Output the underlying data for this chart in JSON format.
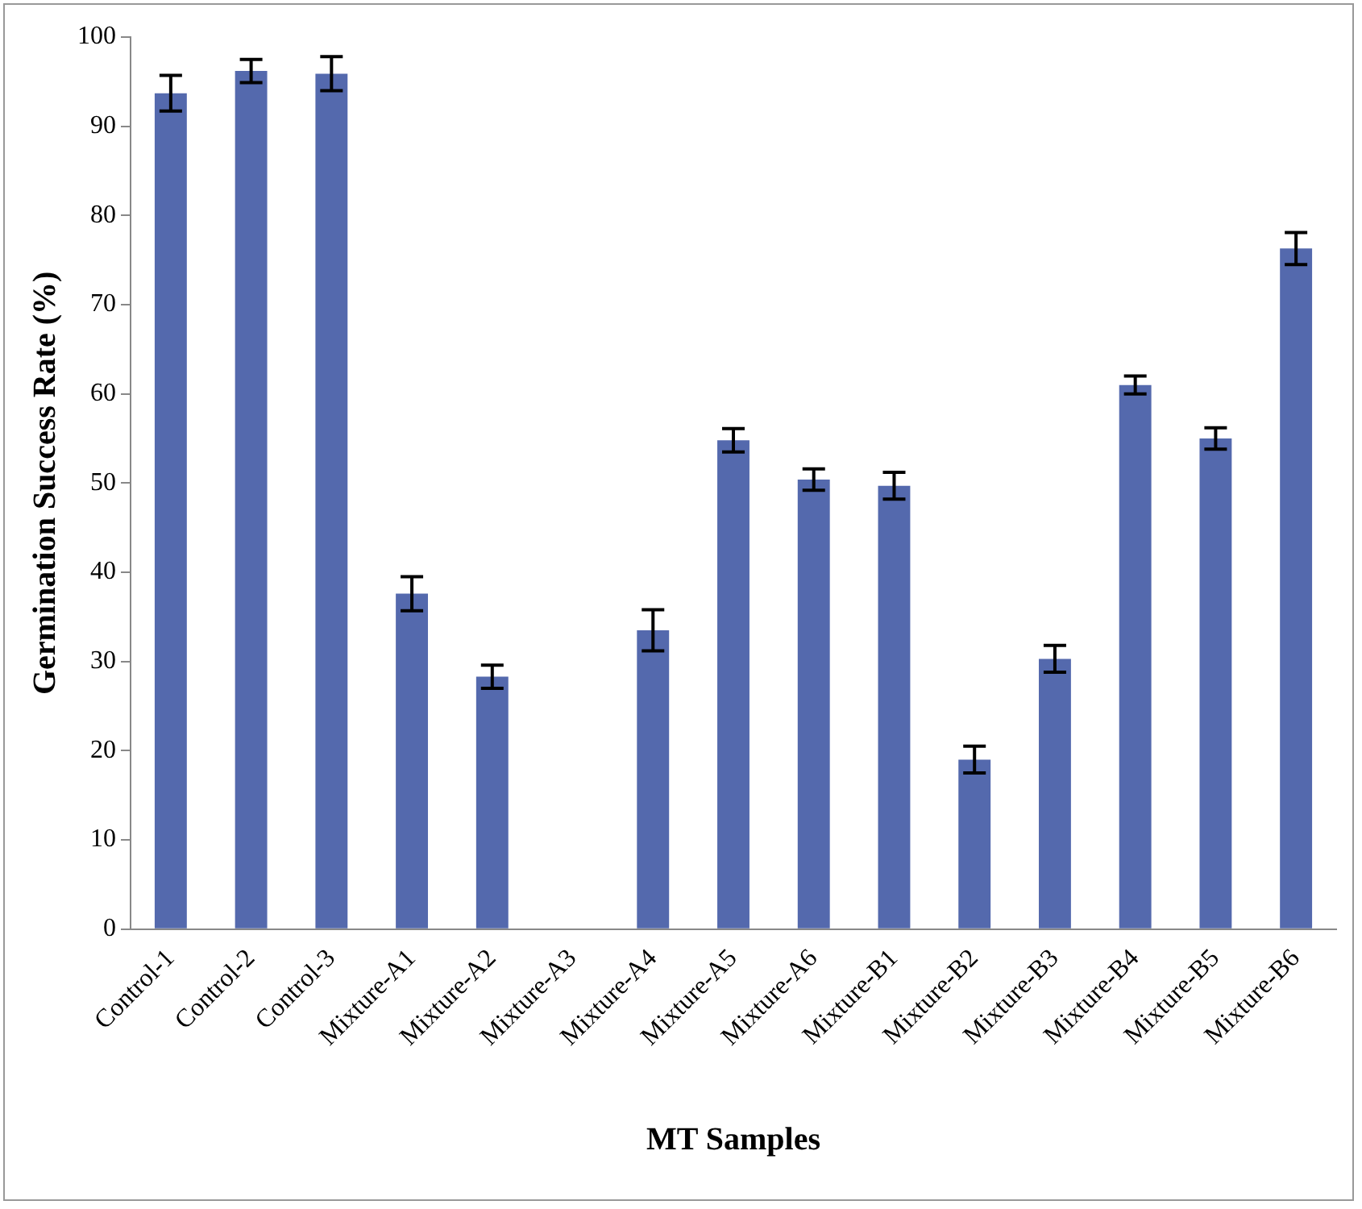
{
  "chart_data": {
    "type": "bar",
    "xlabel": "MT Samples",
    "ylabel": "Germination Success Rate (%)",
    "categories": [
      "Control-1",
      "Control-2",
      "Control-3",
      "Mixture-A1",
      "Mixture-A2",
      "Mixture-A3",
      "Mixture-A4",
      "Mixture-A5",
      "Mixture-A6",
      "Mixture-B1",
      "Mixture-B2",
      "Mixture-B3",
      "Mixture-B4",
      "Mixture-B5",
      "Mixture-B6"
    ],
    "values": [
      93.7,
      96.2,
      95.9,
      37.6,
      28.3,
      0,
      33.5,
      54.8,
      50.4,
      49.7,
      19,
      30.3,
      61,
      55,
      76.3
    ],
    "errors": [
      2,
      1.3,
      1.9,
      1.9,
      1.3,
      null,
      2.3,
      1.3,
      1.2,
      1.5,
      1.5,
      1.5,
      1,
      1.2,
      1.8
    ],
    "color": "#5469ad",
    "ylim": [
      0,
      100
    ],
    "yticks": [
      0,
      10,
      20,
      30,
      40,
      50,
      60,
      70,
      80,
      90,
      100
    ],
    "grid": false,
    "legend": false
  }
}
